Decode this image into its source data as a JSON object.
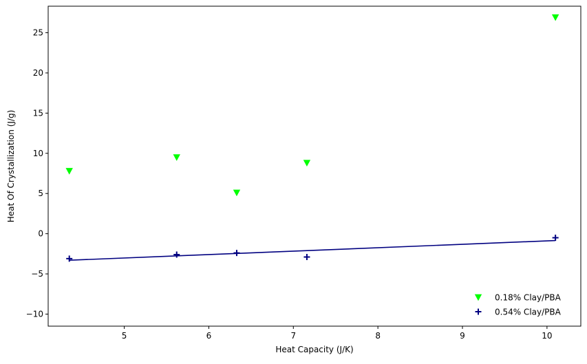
{
  "chart_data": {
    "type": "scatter",
    "title": "",
    "xlabel": "Heat Capacity (J/K)",
    "ylabel": "Heat Of Crystallization (J/g)",
    "xlim": [
      4.1,
      10.4
    ],
    "ylim": [
      -11.5,
      28.3
    ],
    "xticks": [
      5,
      6,
      7,
      8,
      9,
      10
    ],
    "yticks": [
      -10,
      -5,
      0,
      5,
      10,
      15,
      20,
      25
    ],
    "grid": false,
    "legend_position": "lower-right",
    "series": [
      {
        "name": "0.18% Clay/PBA",
        "marker": "triangle-down",
        "color": "#00ff00",
        "points": [
          {
            "x": 4.35,
            "y": 7.8
          },
          {
            "x": 5.62,
            "y": 9.5
          },
          {
            "x": 6.33,
            "y": 5.1
          },
          {
            "x": 7.16,
            "y": 8.8
          },
          {
            "x": 10.1,
            "y": 26.9
          }
        ]
      },
      {
        "name": "0.54% Clay/PBA",
        "marker": "plus",
        "color": "#000080",
        "points": [
          {
            "x": 4.35,
            "y": -3.1
          },
          {
            "x": 5.62,
            "y": -2.6
          },
          {
            "x": 6.33,
            "y": -2.4
          },
          {
            "x": 7.16,
            "y": -2.9
          },
          {
            "x": 10.1,
            "y": -0.5
          }
        ],
        "fit_line": {
          "x": [
            4.35,
            10.1
          ],
          "y": [
            -3.3,
            -0.85
          ],
          "color": "#000080"
        }
      }
    ]
  }
}
